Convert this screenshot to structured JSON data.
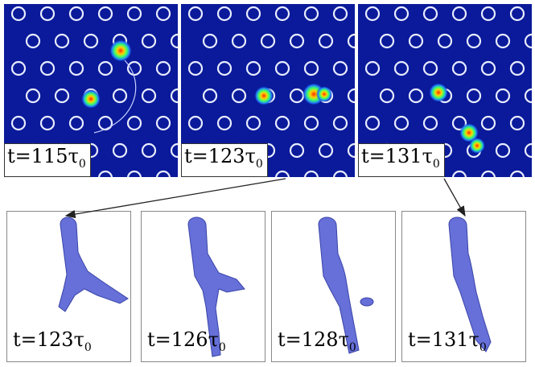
{
  "colors": {
    "lattice_background": "#0a1a9a",
    "obstacle_ring": "#e8ecff",
    "isosurface": "#6670d8",
    "arrow": "#222222"
  },
  "top_row": [
    {
      "label": "t=115τ",
      "sub": "0"
    },
    {
      "label": "t=123τ",
      "sub": "0"
    },
    {
      "label": "t=131τ",
      "sub": "0"
    }
  ],
  "bottom_row": [
    {
      "label": "t=123τ",
      "sub": "0"
    },
    {
      "label": "t=126τ",
      "sub": "0"
    },
    {
      "label": "t=128τ",
      "sub": "0"
    },
    {
      "label": "t=131τ",
      "sub": "0"
    }
  ]
}
